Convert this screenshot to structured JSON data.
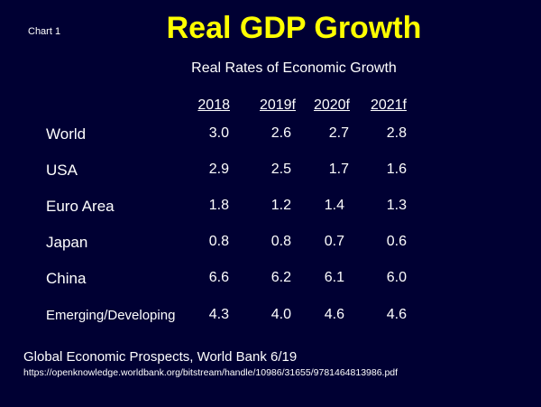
{
  "slide": {
    "chart_label": "Chart 1",
    "title": "Real GDP Growth",
    "subtitle": "Real Rates of Economic Growth",
    "source": "Global Economic Prospects, World Bank  6/19",
    "url": "https://openknowledge.worldbank.org/bitstream/handle/10986/31655/9781464813986.pdf"
  },
  "colors": {
    "background": "#000033",
    "title": "#ffff00",
    "text": "#ffffff"
  },
  "chart_data": {
    "type": "table",
    "title": "Real GDP Growth",
    "subtitle": "Real Rates of Economic Growth",
    "columns": [
      "2018",
      "2019f",
      "2020f",
      "2021f"
    ],
    "rows": [
      {
        "label": "World",
        "values": [
          "3.0",
          "2.6",
          "2.7",
          "2.8"
        ]
      },
      {
        "label": "USA",
        "values": [
          "2.9",
          "2.5",
          "1.7",
          "1.6"
        ]
      },
      {
        "label": "Euro Area",
        "values": [
          "1.8",
          "1.2",
          "1.4",
          "1.3"
        ]
      },
      {
        "label": "Japan",
        "values": [
          "0.8",
          "0.8",
          "0.7",
          "0.6"
        ]
      },
      {
        "label": "China",
        "values": [
          "6.6",
          "6.2",
          "6.1",
          "6.0"
        ]
      },
      {
        "label": "Emerging/Developing",
        "values": [
          "4.3",
          "4.0",
          "4.6",
          "4.6"
        ]
      }
    ]
  }
}
